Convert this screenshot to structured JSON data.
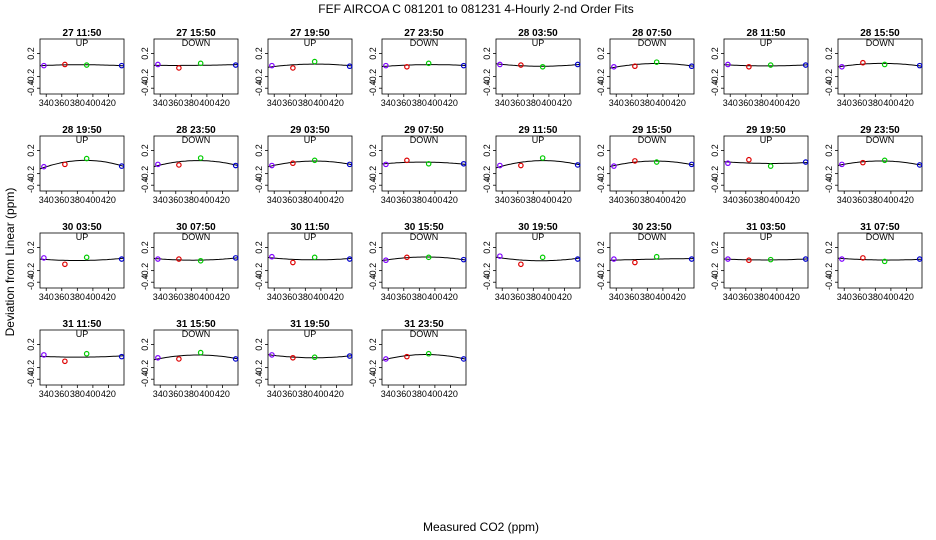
{
  "title": "FEF   AIRCOA C   081201 to 081231   4-Hourly 2-nd Order Fits",
  "xlabel": "Measured CO2 (ppm)",
  "ylabel": "Deviation from Linear (ppm)",
  "xticks": [
    "340",
    "360",
    "380",
    "400",
    "420"
  ],
  "yticks": [
    "0.2",
    "-0.2",
    "-0.4"
  ],
  "colors": {
    "point1": "#7f00ff",
    "point2": "#dd0000",
    "point3": "#00cc00",
    "point4": "#0000cc",
    "fit": "#000000"
  },
  "chart_data": {
    "type": "scatter",
    "xlim": [
      332,
      440
    ],
    "ylim": [
      -0.5,
      0.45
    ],
    "grid": false,
    "x_standards": [
      337,
      364,
      392,
      437
    ],
    "panels": [
      {
        "title": "27 11:50",
        "direction": "UP",
        "y": [
          -0.01,
          0.01,
          0.0,
          -0.01
        ]
      },
      {
        "title": "27 15:50",
        "direction": "DOWN",
        "y": [
          0.01,
          -0.05,
          0.03,
          0.0
        ]
      },
      {
        "title": "27 19:50",
        "direction": "UP",
        "y": [
          -0.01,
          -0.05,
          0.06,
          -0.02
        ]
      },
      {
        "title": "27 23:50",
        "direction": "DOWN",
        "y": [
          -0.01,
          -0.03,
          0.03,
          -0.01
        ]
      },
      {
        "title": "28 03:50",
        "direction": "UP",
        "y": [
          0.01,
          0.0,
          -0.03,
          0.01
        ]
      },
      {
        "title": "28 07:50",
        "direction": "DOWN",
        "y": [
          -0.03,
          -0.02,
          0.05,
          -0.02
        ]
      },
      {
        "title": "28 11:50",
        "direction": "UP",
        "y": [
          0.01,
          -0.03,
          0.0,
          0.0
        ]
      },
      {
        "title": "28 15:50",
        "direction": "DOWN",
        "y": [
          -0.03,
          0.04,
          0.01,
          -0.01
        ]
      },
      {
        "title": "28 19:50",
        "direction": "UP",
        "y": [
          -0.08,
          -0.04,
          0.06,
          -0.07
        ]
      },
      {
        "title": "28 23:50",
        "direction": "DOWN",
        "y": [
          -0.04,
          -0.05,
          0.07,
          -0.06
        ]
      },
      {
        "title": "29 03:50",
        "direction": "UP",
        "y": [
          -0.06,
          -0.02,
          0.03,
          -0.04
        ]
      },
      {
        "title": "29 07:50",
        "direction": "DOWN",
        "y": [
          -0.04,
          0.03,
          -0.03,
          -0.03
        ]
      },
      {
        "title": "29 11:50",
        "direction": "UP",
        "y": [
          -0.06,
          -0.06,
          0.07,
          -0.05
        ]
      },
      {
        "title": "29 15:50",
        "direction": "DOWN",
        "y": [
          -0.07,
          0.02,
          0.0,
          -0.04
        ]
      },
      {
        "title": "29 19:50",
        "direction": "UP",
        "y": [
          -0.02,
          0.04,
          -0.07,
          0.0
        ]
      },
      {
        "title": "29 23:50",
        "direction": "DOWN",
        "y": [
          -0.04,
          -0.01,
          0.03,
          -0.05
        ]
      },
      {
        "title": "30 03:50",
        "direction": "UP",
        "y": [
          0.02,
          -0.09,
          0.03,
          0.0
        ]
      },
      {
        "title": "30 07:50",
        "direction": "DOWN",
        "y": [
          0.0,
          0.0,
          -0.03,
          0.02
        ]
      },
      {
        "title": "30 11:50",
        "direction": "UP",
        "y": [
          0.04,
          -0.06,
          0.03,
          0.0
        ]
      },
      {
        "title": "30 15:50",
        "direction": "DOWN",
        "y": [
          -0.02,
          0.03,
          0.03,
          -0.01
        ]
      },
      {
        "title": "30 19:50",
        "direction": "UP",
        "y": [
          0.05,
          -0.09,
          0.03,
          0.0
        ]
      },
      {
        "title": "30 23:50",
        "direction": "DOWN",
        "y": [
          0.0,
          -0.06,
          0.04,
          0.0
        ]
      },
      {
        "title": "31 03:50",
        "direction": "UP",
        "y": [
          0.0,
          -0.02,
          -0.01,
          0.0
        ]
      },
      {
        "title": "31 07:50",
        "direction": "DOWN",
        "y": [
          0.0,
          0.02,
          -0.04,
          0.0
        ]
      },
      {
        "title": "31 11:50",
        "direction": "UP",
        "y": [
          0.02,
          -0.09,
          0.04,
          -0.01
        ]
      },
      {
        "title": "31 15:50",
        "direction": "DOWN",
        "y": [
          -0.03,
          -0.05,
          0.06,
          -0.05
        ]
      },
      {
        "title": "31 19:50",
        "direction": "UP",
        "y": [
          0.02,
          -0.03,
          -0.02,
          0.0
        ]
      },
      {
        "title": "31 23:50",
        "direction": "DOWN",
        "y": [
          -0.05,
          -0.01,
          0.04,
          -0.05
        ]
      }
    ]
  }
}
